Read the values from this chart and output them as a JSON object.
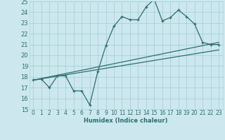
{
  "xlabel": "Humidex (Indice chaleur)",
  "xlim": [
    -0.5,
    23.5
  ],
  "ylim": [
    15,
    25
  ],
  "xticks": [
    0,
    1,
    2,
    3,
    4,
    5,
    6,
    7,
    8,
    9,
    10,
    11,
    12,
    13,
    14,
    15,
    16,
    17,
    18,
    19,
    20,
    21,
    22,
    23
  ],
  "yticks": [
    15,
    16,
    17,
    18,
    19,
    20,
    21,
    22,
    23,
    24,
    25
  ],
  "bg_color": "#cce8ee",
  "grid_color": "#aad4da",
  "line_color": "#2d6e6e",
  "line1_x": [
    0,
    1,
    2,
    3,
    4,
    5,
    6,
    7,
    8,
    9,
    10,
    11,
    12,
    13,
    14,
    15,
    16,
    17,
    18,
    19,
    20,
    21,
    22,
    23
  ],
  "line1_y": [
    17.7,
    17.8,
    17.0,
    18.1,
    18.1,
    16.7,
    16.7,
    15.4,
    18.5,
    20.9,
    22.7,
    23.6,
    23.3,
    23.3,
    24.5,
    25.2,
    23.2,
    23.5,
    24.2,
    23.6,
    22.9,
    21.2,
    21.0,
    21.0
  ],
  "line2_x": [
    0,
    23
  ],
  "line2_y": [
    17.7,
    20.5
  ],
  "line3_x": [
    0,
    23
  ],
  "line3_y": [
    17.7,
    21.2
  ]
}
